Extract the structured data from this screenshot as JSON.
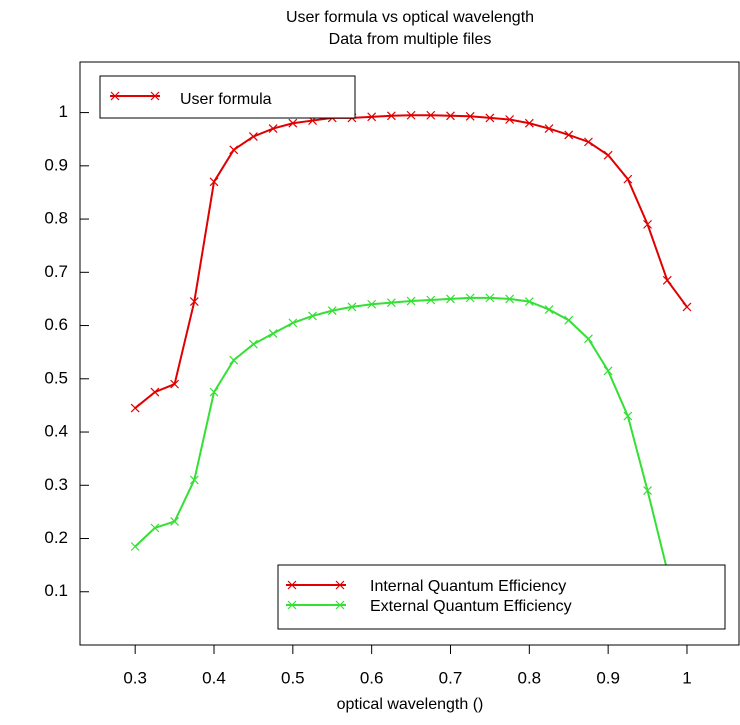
{
  "chart_data": {
    "type": "line",
    "title": "User formula vs optical wavelength",
    "subtitle": "Data from multiple files",
    "x_label": "optical wavelength ()",
    "formula_legend": "User formula",
    "formula_color": "#e00000",
    "x": [
      0.3,
      0.325,
      0.35,
      0.375,
      0.4,
      0.425,
      0.45,
      0.475,
      0.5,
      0.525,
      0.55,
      0.575,
      0.6,
      0.625,
      0.65,
      0.675,
      0.7,
      0.725,
      0.75,
      0.775,
      0.8,
      0.825,
      0.85,
      0.875,
      0.9,
      0.925,
      0.95,
      0.975,
      1.0
    ],
    "series": [
      {
        "name": "Internal Quantum Efficiency",
        "color": "#e00000",
        "values": [
          0.445,
          0.475,
          0.49,
          0.645,
          0.87,
          0.93,
          0.955,
          0.97,
          0.98,
          0.985,
          0.99,
          0.99,
          0.992,
          0.994,
          0.995,
          0.995,
          0.994,
          0.993,
          0.99,
          0.987,
          0.98,
          0.97,
          0.958,
          0.945,
          0.92,
          0.875,
          0.79,
          0.685,
          0.635
        ]
      },
      {
        "name": "External Quantum Efficiency",
        "color": "#33e033",
        "values": [
          0.185,
          0.22,
          0.232,
          0.31,
          0.475,
          0.535,
          0.565,
          0.585,
          0.605,
          0.618,
          0.628,
          0.635,
          0.64,
          0.643,
          0.646,
          0.648,
          0.65,
          0.652,
          0.652,
          0.65,
          0.645,
          0.63,
          0.61,
          0.575,
          0.515,
          0.43,
          0.29,
          0.14,
          0.095
        ]
      }
    ],
    "xlim": [
      0.23,
      1.066
    ],
    "xticks": [
      0.3,
      0.4,
      0.5,
      0.6,
      0.7,
      0.8,
      0.9,
      1
    ],
    "ylim": [
      0,
      1.095
    ],
    "yticks": [
      0.1,
      0.2,
      0.3,
      0.4,
      0.5,
      0.6,
      0.7,
      0.8,
      0.9,
      1
    ],
    "legend": "lower right"
  }
}
